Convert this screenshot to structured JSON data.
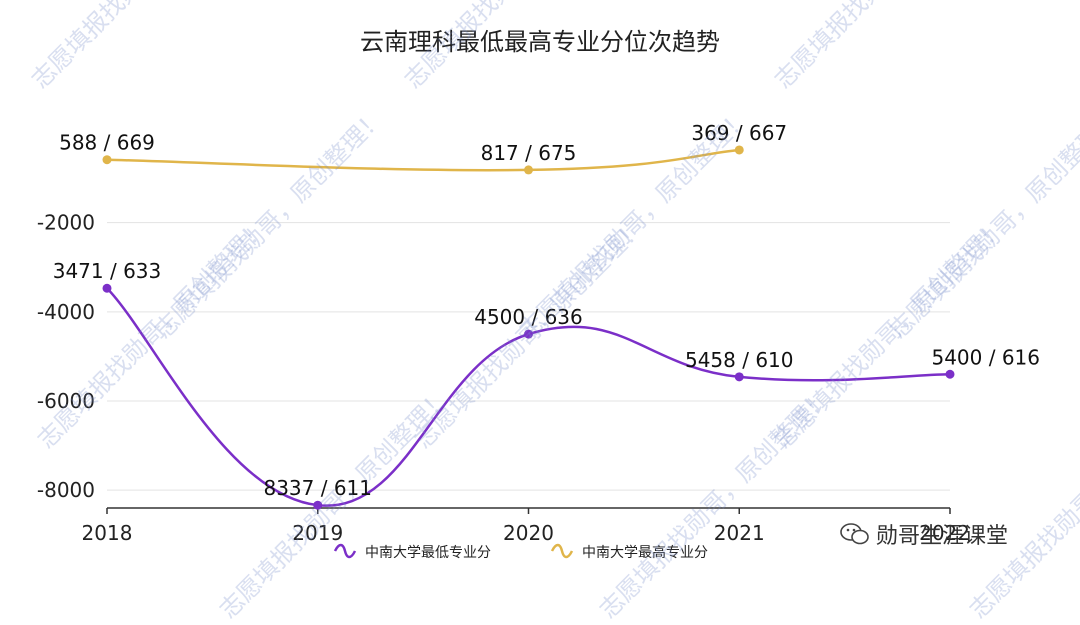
{
  "chart_data": {
    "type": "line",
    "title": "云南理科最低最高专业分位次趋势",
    "categories": [
      "2018",
      "2019",
      "2020",
      "2021",
      "2022"
    ],
    "y_ticks": [
      "-2000",
      "-4000",
      "-6000",
      "-8000"
    ],
    "ylim": [
      -8400,
      1200
    ],
    "grid": true,
    "legend_position": "bottom",
    "series": [
      {
        "name": "中南大学最低专业分",
        "color": "#7b2fc8",
        "x": [
          "2018",
          "2019",
          "2020",
          "2021",
          "2022"
        ],
        "values": [
          -3471,
          -8337,
          -4500,
          -5458,
          -5400
        ],
        "labels": [
          "3471 / 633",
          "8337 / 611",
          "4500 / 636",
          "5458 / 610",
          "5400 / 616"
        ]
      },
      {
        "name": "中南大学最高专业分",
        "color": "#e0b54a",
        "x": [
          "2018",
          "2020",
          "2021"
        ],
        "values": [
          -588,
          -817,
          -369
        ],
        "labels": [
          "588 / 669",
          "817 / 675",
          "369 / 667"
        ]
      }
    ]
  },
  "watermark": "志愿填报找勋哥，原创整理！",
  "brand": {
    "icon": "wechat-icon",
    "text": "勋哥生涯课堂"
  }
}
